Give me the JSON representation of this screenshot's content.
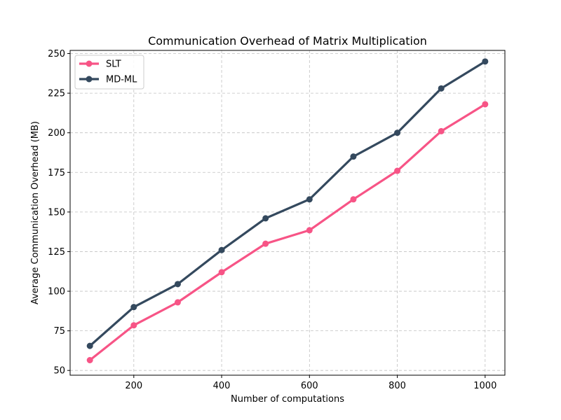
{
  "chart_data": {
    "type": "line",
    "title": "Communication Overhead of Matrix Multiplication",
    "xlabel": "Number of computations",
    "ylabel": "Average Communication Overhead (MB)",
    "x": [
      100,
      200,
      300,
      400,
      500,
      600,
      700,
      800,
      900,
      1000
    ],
    "xlim": [
      55,
      1045
    ],
    "ylim": [
      47,
      252
    ],
    "xticks": [
      200,
      400,
      600,
      800,
      1000
    ],
    "yticks": [
      50,
      75,
      100,
      125,
      150,
      175,
      200,
      225,
      250
    ],
    "grid": true,
    "legend_position": "upper-left",
    "series": [
      {
        "name": "SLT",
        "color": "#f75486",
        "values": [
          56.5,
          78.5,
          93,
          112,
          130,
          138.5,
          158,
          176,
          201,
          218
        ]
      },
      {
        "name": "MD-ML",
        "color": "#34495e",
        "values": [
          65.5,
          90,
          104.5,
          126,
          146,
          158,
          185,
          200,
          228,
          245
        ]
      }
    ]
  }
}
